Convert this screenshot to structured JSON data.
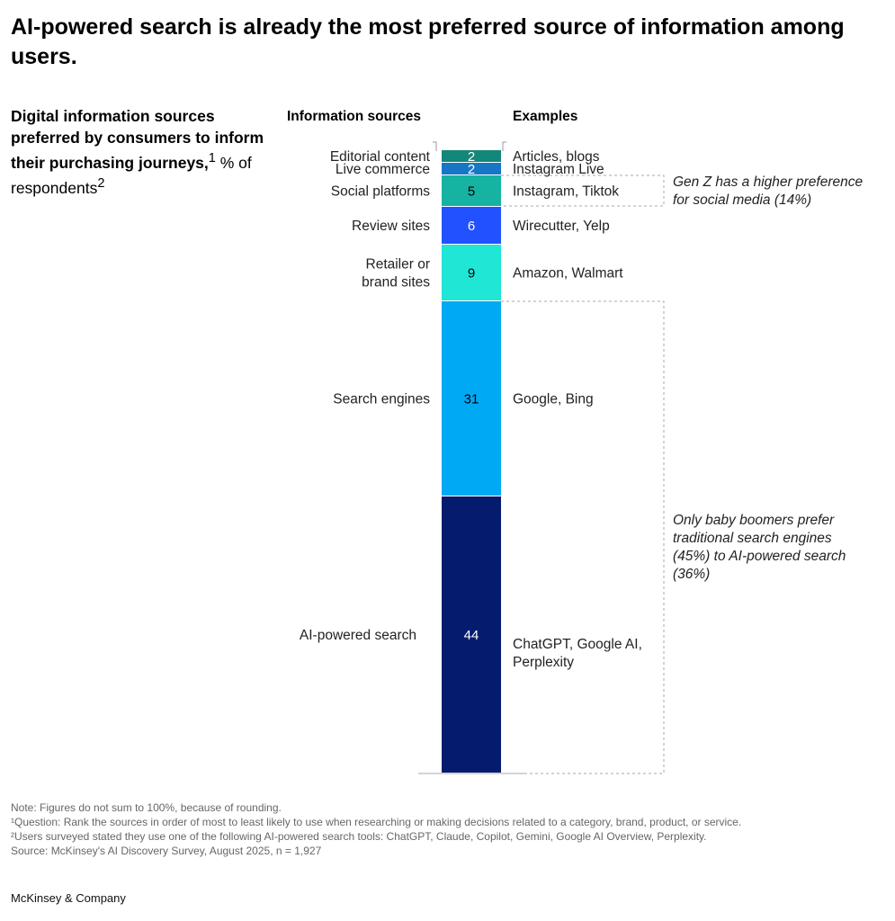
{
  "title": "AI-powered search is already the most preferred source of information among users.",
  "subtitle": {
    "bold": "Digital information sources preferred by consumers to inform their purchasing journeys,",
    "sup1": "1",
    "rest": " % of respondents",
    "sup2": "2"
  },
  "column_headers": {
    "sources": "Information sources",
    "examples": "Examples"
  },
  "chart_data": {
    "type": "bar",
    "stacked": true,
    "unit": "% of respondents",
    "categories": [
      "Editorial content",
      "Live commerce",
      "Social platforms",
      "Review sites",
      "Retailer or brand sites",
      "Search engines",
      "AI-powered search"
    ],
    "values": [
      2,
      2,
      5,
      6,
      9,
      31,
      44
    ],
    "examples": [
      "Articles, blogs",
      "Instagram Live",
      "Instagram, Tiktok",
      "Wirecutter, Yelp",
      "Amazon, Walmart",
      "Google, Bing",
      "ChatGPT, Google AI, Perplexity"
    ],
    "colors": [
      "#13877a",
      "#1577c6",
      "#16b2a2",
      "#2251ff",
      "#20e6d6",
      "#00a9f4",
      "#051c6e"
    ],
    "label_colors": [
      "#ffffff",
      "#ffffff",
      "#000000",
      "#ffffff",
      "#000000",
      "#000000",
      "#ffffff"
    ],
    "annotations": [
      {
        "text": "Gen Z has a higher preference for social media (14%)",
        "applies_to": [
          "Social platforms"
        ]
      },
      {
        "text": "Only baby boomers prefer traditional search engines (45%) to AI-powered search (36%)",
        "applies_to": [
          "Search engines",
          "AI-powered search"
        ]
      }
    ]
  },
  "notes": [
    "Note: Figures do not sum to 100%, because of rounding.",
    "¹Question: Rank the sources in order of most to least likely to use when researching or making decisions related to a category, brand, product, or service.",
    "²Users surveyed stated they use one of the following AI-powered search tools: ChatGPT, Claude, Copilot, Gemini, Google AI Overview, Perplexity.",
    " Source: McKinsey's AI Discovery Survey, August 2025, n = 1,927"
  ],
  "logo": "McKinsey & Company"
}
